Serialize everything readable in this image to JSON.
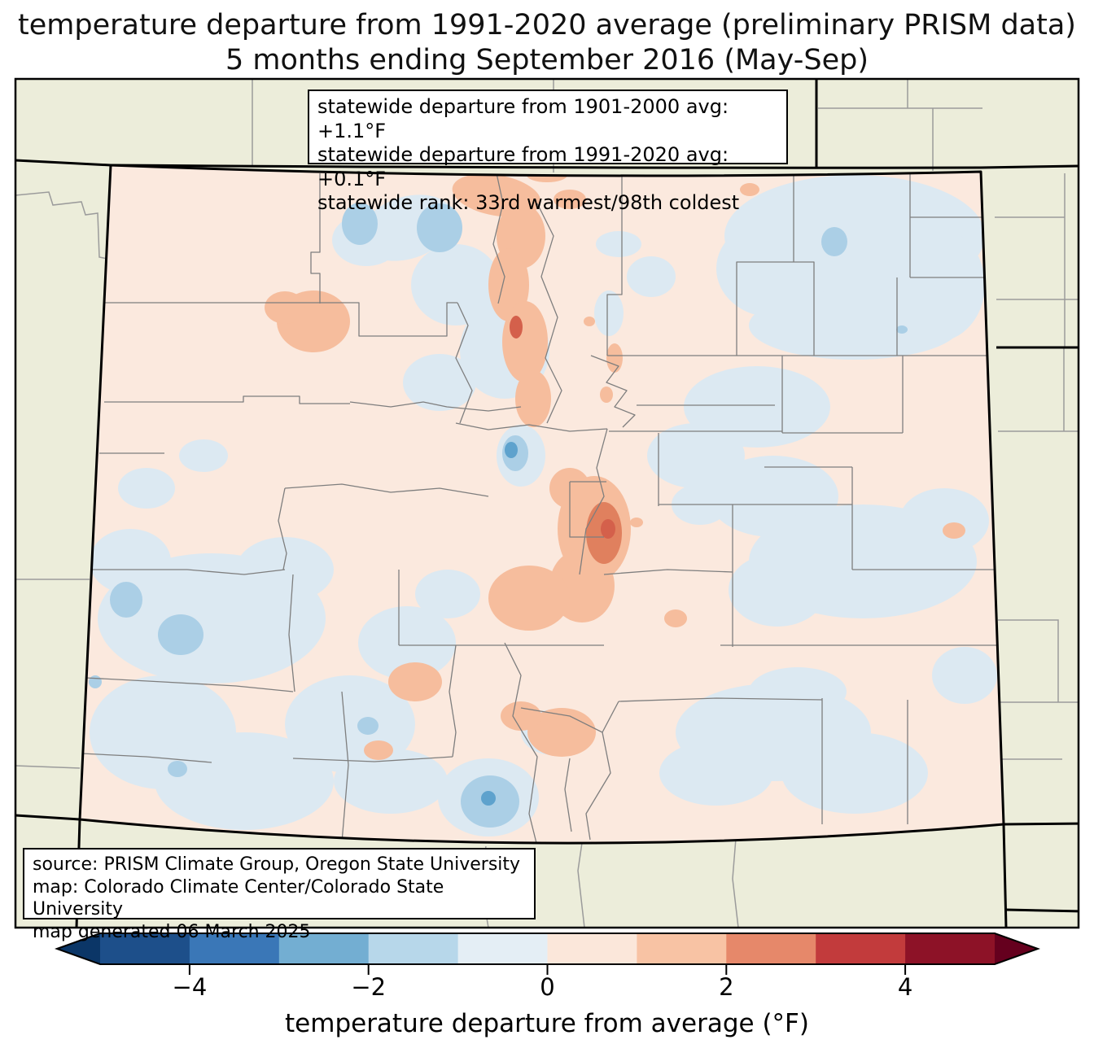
{
  "title": {
    "line1": "temperature departure from 1991-2020 average (preliminary PRISM data)",
    "line2": "5 months ending September 2016 (May-Sep)"
  },
  "stats_box": {
    "lines": [
      "statewide departure from 1901-2000 avg: +1.1°F",
      "statewide departure from 1991-2020 avg: +0.1°F",
      "statewide rank: 33rd warmest/98th coldest"
    ]
  },
  "source_box": {
    "lines": [
      "source: PRISM Climate Group, Oregon State University",
      "map: Colorado Climate Center/Colorado State University",
      "map generated 06 March 2025"
    ]
  },
  "colorbar": {
    "label": "temperature departure from average (°F)",
    "range": [
      -5,
      5
    ],
    "ticks": [
      -4,
      -2,
      0,
      2,
      4
    ],
    "tick_labels": [
      "−4",
      "−2",
      "0",
      "2",
      "4"
    ],
    "segment_colors": [
      "#1d4f8a",
      "#3a77b7",
      "#73aed2",
      "#b7d7ea",
      "#e4eef5",
      "#fbe7da",
      "#f8c3a4",
      "#e6886a",
      "#c23b3c",
      "#8d1227"
    ],
    "under_color": "#0b3667",
    "over_color": "#65001e"
  },
  "map": {
    "outside_fill": "#ecedda",
    "base_fill": "#fbe9de",
    "pale_blue": "#dce9f2",
    "light_blue": "#abcfe6",
    "medium_blue": "#5ea2cd",
    "light_orange": "#f6bd9d",
    "salmon": "#e0805e",
    "red": "#d4604b",
    "county_line_color": "#7e7e7e",
    "neighbor_line_color": "#9b9b9b",
    "state_border_color": "#000000"
  }
}
